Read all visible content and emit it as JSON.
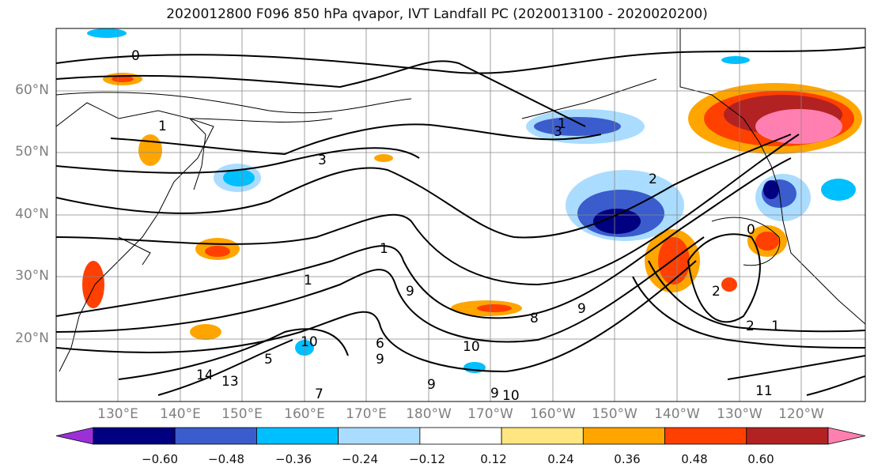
{
  "title": "2020012800 F096 850 hPa qvapor, IVT Landfall PC (2020013100 - 2020020200)",
  "latitude_labels": [
    "60°N",
    "50°N",
    "40°N",
    "30°N",
    "20°N"
  ],
  "longitude_labels": [
    "130°E",
    "140°E",
    "150°E",
    "160°E",
    "170°E",
    "180°W",
    "170°W",
    "160°W",
    "150°W",
    "140°W",
    "130°W",
    "120°W"
  ],
  "colorbar": {
    "ticks": [
      "−0.60",
      "−0.48",
      "−0.36",
      "−0.24",
      "−0.12",
      "0.12",
      "0.24",
      "0.36",
      "0.48",
      "0.60"
    ],
    "colors": [
      "#9b30d9",
      "#000080",
      "#3a5ccc",
      "#00bfff",
      "#aadcff",
      "#ffffff",
      "#ffe680",
      "#ffa500",
      "#ff4000",
      "#b22222",
      "#ff80b0"
    ]
  },
  "contour_labels": [
    "0",
    "1",
    "1",
    "2",
    "3",
    "3",
    "6",
    "9",
    "9",
    "9",
    "9",
    "10",
    "10",
    "10",
    "11",
    "13",
    "14",
    "7",
    "0",
    "1",
    "2",
    "2",
    "1",
    "1",
    "5",
    "8",
    "9"
  ]
}
